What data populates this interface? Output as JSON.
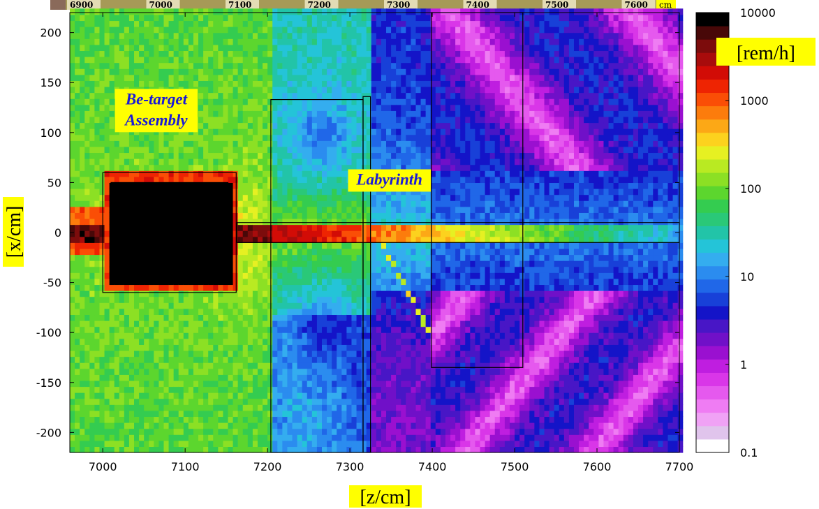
{
  "ruler": {
    "labels": [
      "6900",
      "7000",
      "7100",
      "7200",
      "7300",
      "7400",
      "7500",
      "7600"
    ],
    "unit": "cm",
    "colors": {
      "bar": "#a69a57",
      "gap": "#e3dcb5",
      "unit_bg": "#ffff00"
    }
  },
  "chart_data": {
    "type": "heatmap",
    "title": "",
    "xlabel": "[z/cm]",
    "ylabel": "[x/cm]",
    "xlim": [
      6960,
      7700
    ],
    "ylim": [
      -220,
      220
    ],
    "x_ticks": [
      7000,
      7100,
      7200,
      7300,
      7400,
      7500,
      7600,
      7700
    ],
    "y_ticks": [
      200,
      150,
      100,
      50,
      0,
      -50,
      -100,
      -150,
      -200
    ],
    "value_unit": "[rem/h]",
    "color_scale": "log",
    "color_range": [
      0.1,
      10000
    ],
    "colorbar_ticks": [
      {
        "value": 10000,
        "label": "10000"
      },
      {
        "value": 1000,
        "label": "1000"
      },
      {
        "value": 100,
        "label": "100"
      },
      {
        "value": 10,
        "label": "10"
      },
      {
        "value": 1,
        "label": "1"
      },
      {
        "value": 0.1,
        "label": "0.1"
      }
    ],
    "colormap": [
      "#ffffff",
      "#e0c4ec",
      "#f0a2f5",
      "#ef7cf3",
      "#e559ee",
      "#d936e8",
      "#bf1ee0",
      "#9a10d0",
      "#7010c8",
      "#4816c6",
      "#1414c8",
      "#1840d8",
      "#2067e8",
      "#2b8cef",
      "#34adef",
      "#24c4d8",
      "#22c4a8",
      "#2ac878",
      "#34cc50",
      "#5cd62e",
      "#8ce024",
      "#b9ea22",
      "#e6f022",
      "#fcd21e",
      "#fca816",
      "#fc7c0c",
      "#fa4e06",
      "#ee2402",
      "#d20c06",
      "#a80c0c",
      "#7c0c0c",
      "#480808",
      "#000000"
    ],
    "regions": [
      {
        "name": "Be-target Assembly",
        "label_lines": [
          "Be-target",
          "Assembly"
        ],
        "label_at": [
          7065,
          122
        ]
      },
      {
        "name": "Labyrinth",
        "label_lines": [
          "Labyrinth"
        ],
        "label_at": [
          7348,
          52
        ]
      }
    ],
    "outlines": [
      {
        "z": [
          7000,
          7162
        ],
        "x": [
          -60,
          60
        ]
      },
      {
        "z": [
          7010,
          7152
        ],
        "x": [
          -50,
          50
        ]
      },
      {
        "z": [
          7204,
          7316
        ],
        "x": [
          -230,
          133
        ]
      },
      {
        "z": [
          7316,
          7325
        ],
        "x": [
          -230,
          136
        ]
      },
      {
        "z": [
          7399,
          7510
        ],
        "x": [
          -135,
          230
        ]
      },
      {
        "z": [
          7163,
          7700
        ],
        "x": [
          -10,
          10
        ]
      }
    ],
    "grid": false,
    "legend": "colorbar right"
  }
}
